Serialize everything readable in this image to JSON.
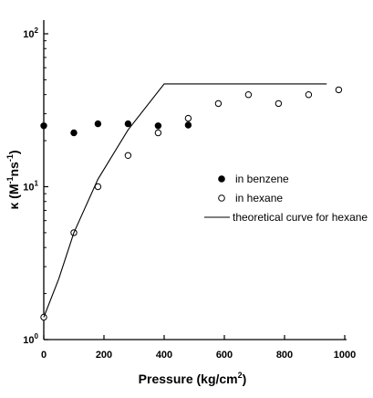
{
  "chart_data": {
    "type": "scatter",
    "x_axis": {
      "label_parts": [
        "Pressure (kg/cm",
        "2",
        ")"
      ],
      "range": [
        0,
        1000
      ],
      "ticks": [
        0,
        200,
        400,
        600,
        800,
        1000
      ],
      "tick_labels": [
        "0",
        "200",
        "400",
        "600",
        "800",
        "1000"
      ]
    },
    "y_axis": {
      "label_parts": [
        "κ (M",
        "-1",
        "ns",
        "-1",
        ")"
      ],
      "scale": "log",
      "range": [
        1,
        100
      ],
      "ticks": [
        1,
        10,
        100
      ],
      "tick_labels": [
        {
          "base": "10",
          "exp": "0"
        },
        {
          "base": "10",
          "exp": "1"
        },
        {
          "base": "10",
          "exp": "2"
        }
      ]
    },
    "series": [
      {
        "name": "in benzene",
        "marker": "filled-circle",
        "points": [
          [
            0,
            25
          ],
          [
            100,
            22.5
          ],
          [
            180,
            25.8
          ],
          [
            280,
            25.8
          ],
          [
            380,
            25
          ],
          [
            480,
            25.3
          ]
        ]
      },
      {
        "name": "in hexane",
        "marker": "open-circle",
        "points": [
          [
            0,
            1.4
          ],
          [
            100,
            5
          ],
          [
            180,
            10
          ],
          [
            280,
            16
          ],
          [
            380,
            22.5
          ],
          [
            480,
            28
          ],
          [
            580,
            35
          ],
          [
            680,
            40
          ],
          [
            780,
            35
          ],
          [
            880,
            40
          ],
          [
            980,
            43
          ]
        ]
      },
      {
        "name": "theoretical curve for hexane",
        "marker": "line",
        "points": [
          [
            0,
            1.4
          ],
          [
            50,
            2.5
          ],
          [
            100,
            5
          ],
          [
            180,
            11.2
          ],
          [
            280,
            23.5
          ],
          [
            400,
            47
          ],
          [
            940,
            47
          ]
        ]
      }
    ],
    "legend_position": "right"
  }
}
